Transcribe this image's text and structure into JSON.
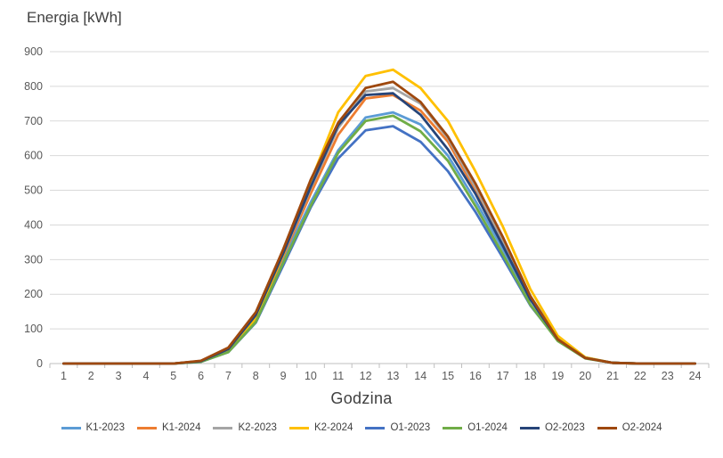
{
  "chart_data": {
    "type": "line",
    "ylabel": "Energia [kWh]",
    "xlabel": "Godzina",
    "ylim": [
      0,
      900
    ],
    "yticks": [
      0,
      100,
      200,
      300,
      400,
      500,
      600,
      700,
      800,
      900
    ],
    "grid": "horizontal",
    "legend_position": "bottom",
    "x": [
      1,
      2,
      3,
      4,
      5,
      6,
      7,
      8,
      9,
      10,
      11,
      12,
      13,
      14,
      15,
      16,
      17,
      18,
      19,
      20,
      21,
      22,
      23,
      24
    ],
    "series": [
      {
        "name": "K1-2023",
        "color": "#5B9BD5",
        "values": [
          0,
          0,
          0,
          0,
          0,
          7,
          40,
          130,
          300,
          465,
          615,
          710,
          725,
          690,
          600,
          470,
          330,
          185,
          75,
          17,
          2,
          0,
          0,
          0
        ]
      },
      {
        "name": "K1-2024",
        "color": "#ED7D31",
        "values": [
          0,
          0,
          0,
          0,
          0,
          7,
          42,
          133,
          310,
          490,
          660,
          765,
          775,
          730,
          640,
          500,
          350,
          190,
          72,
          16,
          2,
          0,
          0,
          0
        ]
      },
      {
        "name": "K2-2023",
        "color": "#A5A5A5",
        "values": [
          0,
          0,
          0,
          0,
          0,
          6,
          40,
          135,
          315,
          505,
          680,
          785,
          795,
          750,
          650,
          510,
          355,
          195,
          75,
          17,
          2,
          0,
          0,
          0
        ]
      },
      {
        "name": "K2-2024",
        "color": "#FFC000",
        "values": [
          0,
          0,
          0,
          0,
          0,
          6,
          38,
          130,
          315,
          525,
          725,
          830,
          848,
          795,
          700,
          555,
          395,
          215,
          80,
          18,
          2,
          0,
          0,
          0
        ]
      },
      {
        "name": "O1-2023",
        "color": "#4472C4",
        "values": [
          0,
          0,
          0,
          0,
          0,
          5,
          33,
          118,
          283,
          450,
          592,
          673,
          685,
          640,
          555,
          438,
          305,
          168,
          67,
          16,
          2,
          0,
          0,
          0
        ]
      },
      {
        "name": "O1-2024",
        "color": "#70AD47",
        "values": [
          0,
          0,
          0,
          0,
          0,
          5,
          33,
          120,
          290,
          455,
          608,
          700,
          715,
          670,
          585,
          455,
          315,
          170,
          65,
          15,
          2,
          0,
          0,
          0
        ]
      },
      {
        "name": "O2-2023",
        "color": "#264478",
        "values": [
          0,
          0,
          0,
          0,
          0,
          7,
          42,
          140,
          318,
          510,
          688,
          775,
          780,
          718,
          618,
          490,
          340,
          185,
          70,
          16,
          2,
          0,
          0,
          0
        ]
      },
      {
        "name": "O2-2024",
        "color": "#9E480E",
        "values": [
          0,
          0,
          0,
          0,
          0,
          8,
          46,
          148,
          330,
          530,
          695,
          795,
          813,
          755,
          655,
          520,
          365,
          195,
          70,
          16,
          2,
          0,
          0,
          0
        ]
      }
    ]
  }
}
